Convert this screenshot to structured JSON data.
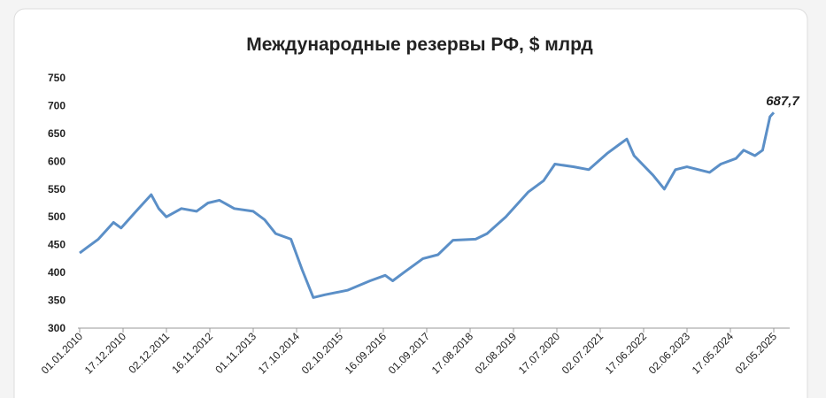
{
  "chart_data": {
    "type": "line",
    "title": "Международные резервы РФ, $ млрд",
    "x": [
      "01.01.2010",
      "01.03.2010",
      "01.06.2010",
      "01.10.2010",
      "01.12.2010",
      "01.04.2011",
      "01.08.2011",
      "01.10.2011",
      "01.12.2011",
      "01.04.2012",
      "01.08.2012",
      "01.11.2012",
      "01.02.2013",
      "01.06.2013",
      "01.11.2013",
      "01.02.2014",
      "01.05.2014",
      "01.09.2014",
      "01.12.2014",
      "01.03.2015",
      "01.06.2015",
      "01.12.2015",
      "01.06.2016",
      "01.10.2016",
      "01.12.2016",
      "01.03.2017",
      "01.08.2017",
      "01.12.2017",
      "01.04.2018",
      "01.10.2018",
      "01.01.2019",
      "01.06.2019",
      "01.12.2019",
      "01.04.2020",
      "01.07.2020",
      "01.12.2020",
      "01.04.2021",
      "01.09.2021",
      "01.12.2021",
      "01.02.2022",
      "01.04.2022",
      "01.09.2022",
      "01.12.2022",
      "01.03.2023",
      "01.06.2023",
      "01.12.2023",
      "01.03.2024",
      "01.07.2024",
      "01.09.2024",
      "01.12.2024",
      "01.02.2025",
      "01.04.2025",
      "02.05.2025"
    ],
    "series": [
      {
        "name": "Международные резервы",
        "color": "#5b8fc7",
        "values": [
          435,
          445,
          460,
          490,
          480,
          510,
          540,
          515,
          500,
          515,
          510,
          525,
          530,
          515,
          510,
          495,
          470,
          460,
          405,
          355,
          360,
          368,
          385,
          395,
          385,
          400,
          425,
          432,
          458,
          460,
          470,
          500,
          545,
          565,
          595,
          590,
          585,
          615,
          630,
          640,
          610,
          575,
          550,
          585,
          590,
          580,
          595,
          605,
          620,
          610,
          620,
          680,
          687.7
        ],
        "value_labels": [
          null,
          null,
          null,
          null,
          null,
          null,
          null,
          null,
          null,
          null,
          null,
          null,
          null,
          null,
          null,
          null,
          null,
          null,
          null,
          null,
          null,
          null,
          null,
          null,
          null,
          null,
          null,
          null,
          null,
          null,
          null,
          null,
          null,
          null,
          null,
          null,
          null,
          null,
          null,
          null,
          null,
          null,
          null,
          null,
          null,
          null,
          null,
          null,
          null,
          null,
          null,
          null,
          "687,7"
        ]
      }
    ],
    "xlim": [
      "01.01.2010",
      "02.05.2025"
    ],
    "xticks": [
      "01.01.2010",
      "17.12.2010",
      "02.12.2011",
      "16.11.2012",
      "01.11.2013",
      "17.10.2014",
      "02.10.2015",
      "16.09.2016",
      "01.09.2017",
      "17.08.2018",
      "02.08.2019",
      "17.07.2020",
      "02.07.2021",
      "17.06.2022",
      "02.06.2023",
      "17.05.2024",
      "02.05.2025"
    ],
    "ylim": [
      300,
      750
    ],
    "yticks": [
      300,
      350,
      400,
      450,
      500,
      550,
      600,
      650,
      700,
      750
    ],
    "grid": false
  }
}
